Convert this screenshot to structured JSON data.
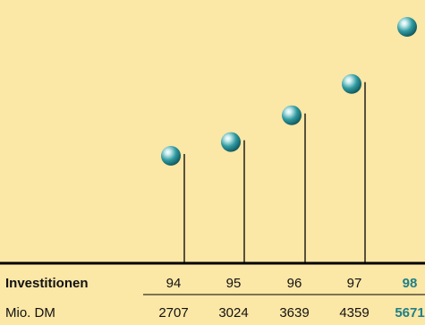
{
  "chart_data": {
    "type": "scatter",
    "title": "",
    "row_label": "Investitionen",
    "unit_label": "Mio. DM",
    "categories": [
      "94",
      "95",
      "96",
      "97",
      "98"
    ],
    "values": [
      2707,
      3024,
      3639,
      4359,
      5671
    ],
    "highlight_index": 4,
    "ylim": [
      0,
      5671
    ],
    "grid": false,
    "colors": {
      "background": "#fbe7a6",
      "marker": "#1f8a8f",
      "highlight_text": "#1f7f86",
      "stem": "#000000"
    }
  }
}
